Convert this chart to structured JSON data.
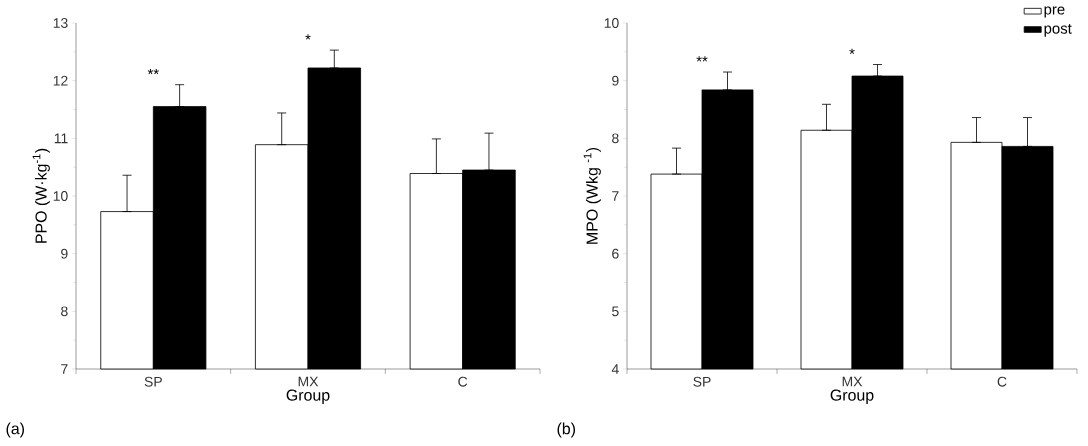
{
  "chart_data": [
    {
      "type": "bar",
      "xlabel": "Group",
      "ylabel": "PPO (W·kg$^{-1}$)",
      "categories": [
        "SP",
        "MX",
        "C"
      ],
      "series": [
        {
          "color": "#ffffff",
          "values": [
            9.73,
            10.89,
            10.39
          ],
          "errors": [
            [
              9.73,
              10.36
            ],
            [
              10.89,
              11.44
            ],
            [
              10.39,
              10.99
            ]
          ]
        },
        {
          "color": "#000000",
          "values": [
            11.55,
            12.22,
            10.45
          ],
          "errors": [
            [
              11.55,
              11.93
            ],
            [
              12.22,
              12.53
            ],
            [
              10.45,
              11.09
            ]
          ]
        }
      ],
      "ylim": [
        7,
        13
      ],
      "yticks": [
        7,
        8,
        9,
        10,
        11,
        12,
        13
      ],
      "annotations": [
        "**",
        "*",
        "(a)"
      ]
    },
    {
      "type": "bar",
      "xlabel": "Group",
      "ylabel": "MPO (Wkg $^{-1}$)",
      "categories": [
        "SP",
        "MX",
        "C"
      ],
      "series": [
        {
          "name": "pre",
          "color": "#ffffff",
          "values": [
            7.38,
            8.14,
            7.93
          ],
          "errors": [
            [
              7.38,
              7.83
            ],
            [
              8.14,
              8.59
            ],
            [
              7.93,
              8.36
            ]
          ]
        },
        {
          "name": "post",
          "color": "#000000",
          "values": [
            8.84,
            9.08,
            7.86
          ],
          "errors": [
            [
              8.84,
              9.15
            ],
            [
              9.08,
              9.28
            ],
            [
              7.86,
              8.36
            ]
          ]
        }
      ],
      "ylim": [
        4,
        10
      ],
      "yticks": [
        4,
        5,
        6,
        7,
        8,
        9,
        10
      ],
      "legend": "top right",
      "annotations": [
        "**",
        "*",
        "(b)"
      ]
    }
  ]
}
